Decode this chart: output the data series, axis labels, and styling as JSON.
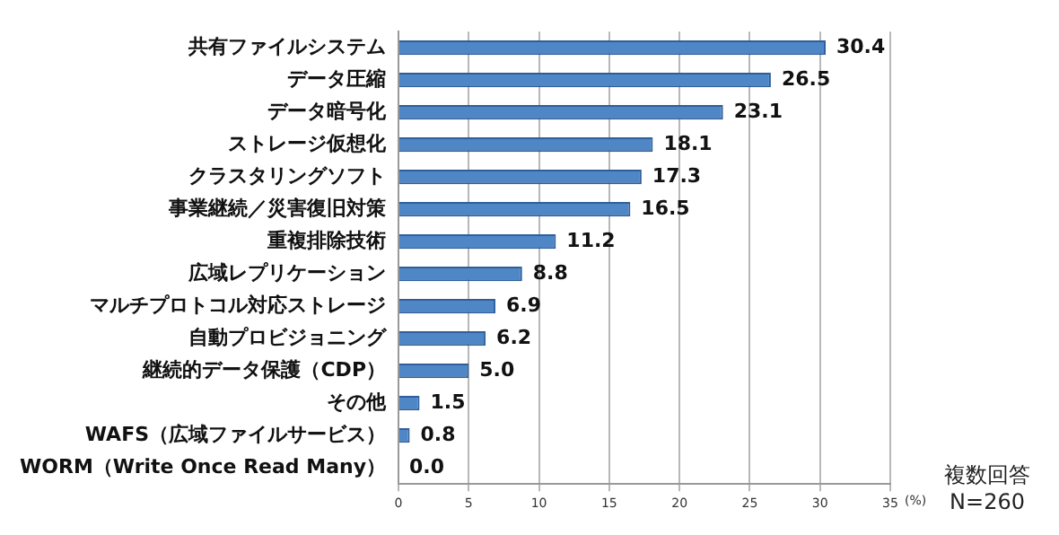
{
  "chart_data": {
    "type": "bar",
    "orientation": "horizontal",
    "categories": [
      "共有ファイルシステム",
      "データ圧縮",
      "データ暗号化",
      "ストレージ仮想化",
      "クラスタリングソフト",
      "事業継続／災害復旧対策",
      "重複排除技術",
      "広域レプリケーション",
      "マルチプロトコル対応ストレージ",
      "自動プロビジョニング",
      "継続的データ保護（CDP）",
      "その他",
      "WAFS（広域ファイルサービス）",
      "WORM（Write Once Read Many）"
    ],
    "values": [
      30.4,
      26.5,
      23.1,
      18.1,
      17.3,
      16.5,
      11.2,
      8.8,
      6.9,
      6.2,
      5.0,
      1.5,
      0.8,
      0.0
    ],
    "color": "#4f86c6",
    "xlim": [
      0,
      35
    ],
    "xticks": [
      0,
      5,
      10,
      15,
      20,
      25,
      30,
      35
    ],
    "xlabel": "(%)",
    "value_labels": [
      "30.4",
      "26.5",
      "23.1",
      "18.1",
      "17.3",
      "16.5",
      "11.2",
      "8.8",
      "6.9",
      "6.2",
      "5.0",
      "1.5",
      "0.8",
      "0.0"
    ],
    "grid": "x",
    "annotations": [
      "複数回答",
      "N=260"
    ]
  }
}
